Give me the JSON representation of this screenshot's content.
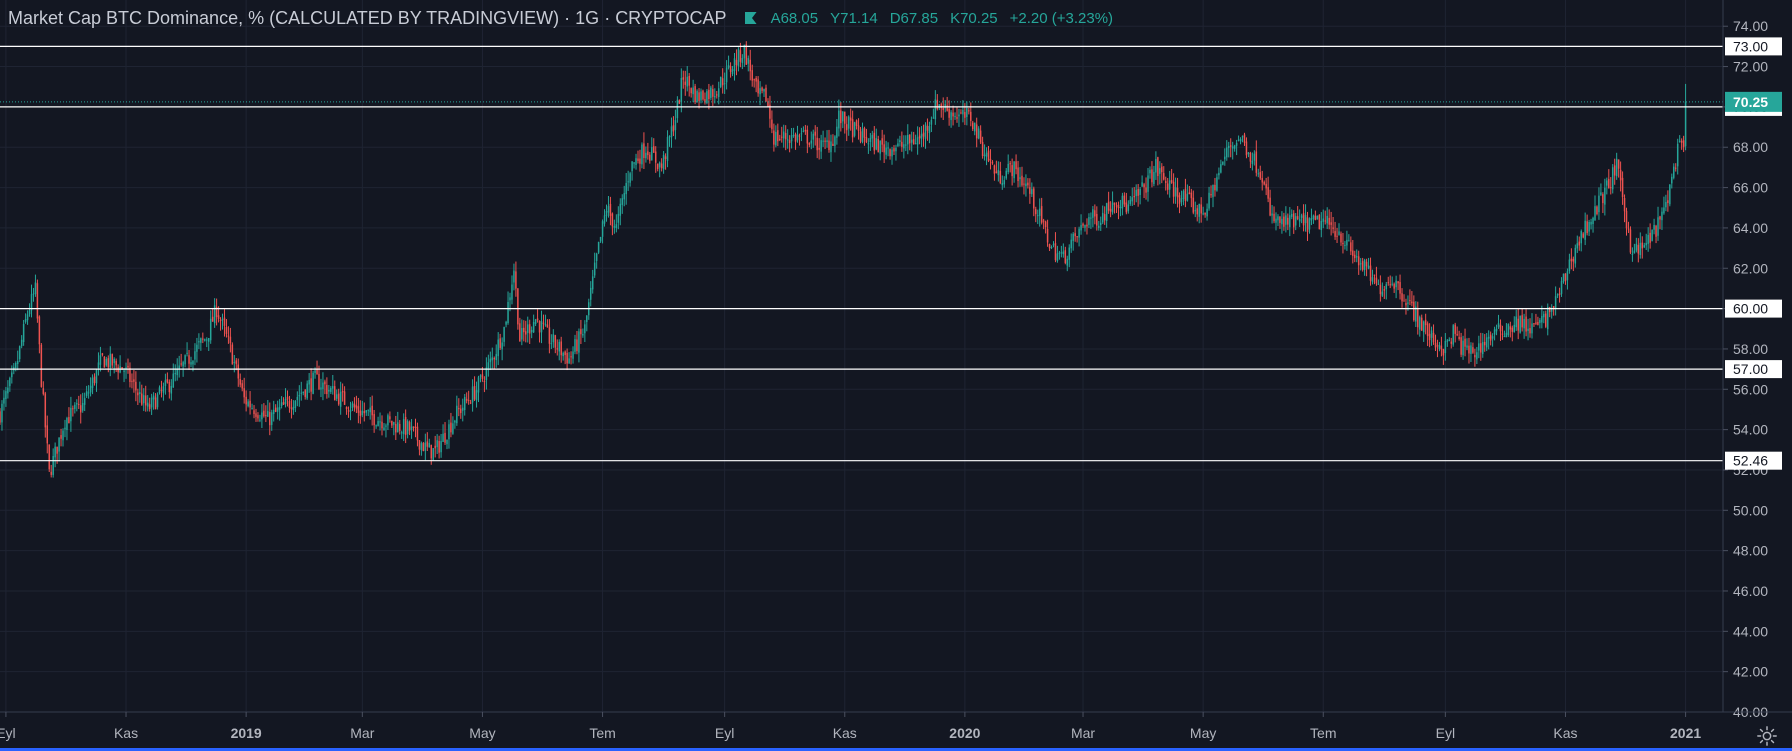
{
  "header": {
    "title": "Market Cap BTC Dominance, % (CALCULATED BY TRADINGVIEW)",
    "interval": "1G",
    "exchange": "CRYPTOCAP",
    "open_label": "A",
    "open": "68.05",
    "high_label": "Y",
    "high": "71.14",
    "low_label": "D",
    "low": "67.85",
    "close_label": "K",
    "close": "70.25",
    "change": "+2.20 (+3.23%)"
  },
  "colors": {
    "background": "#131722",
    "grid": "#1f2433",
    "up": "#26a69a",
    "down": "#ef5350",
    "axis_text": "#b2b5be",
    "level_line": "#ffffff",
    "price_tag": "#26a69a"
  },
  "chart_data": {
    "type": "candlestick",
    "x_axis": {
      "range": [
        "2018-08-29",
        "2021-01-20"
      ],
      "ticks": [
        {
          "date": "2018-09-01",
          "label": "Eyl",
          "bold": false
        },
        {
          "date": "2018-11-01",
          "label": "Kas",
          "bold": false
        },
        {
          "date": "2019-01-01",
          "label": "2019",
          "bold": true
        },
        {
          "date": "2019-03-01",
          "label": "Mar",
          "bold": false
        },
        {
          "date": "2019-05-01",
          "label": "May",
          "bold": false
        },
        {
          "date": "2019-07-01",
          "label": "Tem",
          "bold": false
        },
        {
          "date": "2019-09-01",
          "label": "Eyl",
          "bold": false
        },
        {
          "date": "2019-11-01",
          "label": "Kas",
          "bold": false
        },
        {
          "date": "2020-01-01",
          "label": "2020",
          "bold": true
        },
        {
          "date": "2020-03-01",
          "label": "Mar",
          "bold": false
        },
        {
          "date": "2020-05-01",
          "label": "May",
          "bold": false
        },
        {
          "date": "2020-07-01",
          "label": "Tem",
          "bold": false
        },
        {
          "date": "2020-09-01",
          "label": "Eyl",
          "bold": false
        },
        {
          "date": "2020-11-01",
          "label": "Kas",
          "bold": false
        },
        {
          "date": "2021-01-01",
          "label": "2021",
          "bold": true
        }
      ]
    },
    "y_axis": {
      "range": [
        40,
        75.3
      ],
      "ticks": [
        "40.00",
        "42.00",
        "44.00",
        "46.00",
        "48.00",
        "50.00",
        "52.00",
        "54.00",
        "56.00",
        "58.00",
        "60.00",
        "62.00",
        "64.00",
        "66.00",
        "68.00",
        "70.00",
        "72.00",
        "74.00"
      ],
      "grid": true
    },
    "horizontal_levels": [
      "73.00",
      "70.00",
      "60.00",
      "57.00",
      "52.46"
    ],
    "last_price": "70.25",
    "close_path": [
      [
        "2018-08-29",
        54.8
      ],
      [
        "2018-09-06",
        57.0
      ],
      [
        "2018-09-12",
        59.8
      ],
      [
        "2018-09-16",
        60.9
      ],
      [
        "2018-09-19",
        56.5
      ],
      [
        "2018-09-23",
        51.8
      ],
      [
        "2018-10-01",
        54.5
      ],
      [
        "2018-10-10",
        55.2
      ],
      [
        "2018-10-20",
        57.5
      ],
      [
        "2018-10-31",
        57.0
      ],
      [
        "2018-11-12",
        55.0
      ],
      [
        "2018-11-25",
        56.5
      ],
      [
        "2018-12-05",
        57.8
      ],
      [
        "2018-12-12",
        58.6
      ],
      [
        "2018-12-17",
        60.0
      ],
      [
        "2018-12-24",
        58.0
      ],
      [
        "2018-12-31",
        55.5
      ],
      [
        "2019-01-12",
        54.5
      ],
      [
        "2019-01-25",
        55.5
      ],
      [
        "2019-02-05",
        56.5
      ],
      [
        "2019-02-12",
        56.0
      ],
      [
        "2019-02-26",
        55.0
      ],
      [
        "2019-03-10",
        54.5
      ],
      [
        "2019-03-25",
        54.0
      ],
      [
        "2019-04-03",
        53.0
      ],
      [
        "2019-04-07",
        52.9
      ],
      [
        "2019-04-18",
        54.8
      ],
      [
        "2019-04-28",
        56.0
      ],
      [
        "2019-05-06",
        57.5
      ],
      [
        "2019-05-12",
        59.0
      ],
      [
        "2019-05-17",
        62.0
      ],
      [
        "2019-05-20",
        58.5
      ],
      [
        "2019-05-28",
        59.5
      ],
      [
        "2019-06-04",
        58.5
      ],
      [
        "2019-06-14",
        57.5
      ],
      [
        "2019-06-22",
        59.0
      ],
      [
        "2019-06-28",
        62.5
      ],
      [
        "2019-07-03",
        65.0
      ],
      [
        "2019-07-08",
        64.0
      ],
      [
        "2019-07-15",
        67.0
      ],
      [
        "2019-07-23",
        68.0
      ],
      [
        "2019-07-31",
        67.0
      ],
      [
        "2019-08-07",
        69.5
      ],
      [
        "2019-08-11",
        71.5
      ],
      [
        "2019-08-18",
        70.5
      ],
      [
        "2019-08-27",
        70.8
      ],
      [
        "2019-09-06",
        72.2
      ],
      [
        "2019-09-11",
        72.8
      ],
      [
        "2019-09-18",
        70.5
      ],
      [
        "2019-09-22",
        70.5
      ],
      [
        "2019-09-26",
        68.5
      ],
      [
        "2019-10-06",
        68.5
      ],
      [
        "2019-10-13",
        68.5
      ],
      [
        "2019-10-21",
        68.0
      ],
      [
        "2019-10-27",
        68.5
      ],
      [
        "2019-10-29",
        69.5
      ],
      [
        "2019-11-10",
        68.5
      ],
      [
        "2019-11-20",
        68.0
      ],
      [
        "2019-11-28",
        68.0
      ],
      [
        "2019-12-10",
        68.5
      ],
      [
        "2019-12-18",
        70.2
      ],
      [
        "2019-12-24",
        69.8
      ],
      [
        "2019-12-30",
        69.5
      ],
      [
        "2020-01-04",
        69.5
      ],
      [
        "2020-01-10",
        68.0
      ],
      [
        "2020-01-18",
        66.5
      ],
      [
        "2020-01-25",
        67.0
      ],
      [
        "2020-02-02",
        66.0
      ],
      [
        "2020-02-07",
        64.8
      ],
      [
        "2020-02-14",
        63.0
      ],
      [
        "2020-02-20",
        62.5
      ],
      [
        "2020-02-26",
        63.5
      ],
      [
        "2020-03-04",
        64.5
      ],
      [
        "2020-03-10",
        64.5
      ],
      [
        "2020-03-17",
        65.5
      ],
      [
        "2020-03-24",
        65.0
      ],
      [
        "2020-04-01",
        66.0
      ],
      [
        "2020-04-07",
        67.0
      ],
      [
        "2020-04-14",
        66.0
      ],
      [
        "2020-04-21",
        65.5
      ],
      [
        "2020-04-29",
        64.8
      ],
      [
        "2020-05-03",
        65.0
      ],
      [
        "2020-05-08",
        66.5
      ],
      [
        "2020-05-14",
        68.0
      ],
      [
        "2020-05-20",
        68.5
      ],
      [
        "2020-05-26",
        67.5
      ],
      [
        "2020-06-01",
        66.5
      ],
      [
        "2020-06-04",
        64.5
      ],
      [
        "2020-06-10",
        64.2
      ],
      [
        "2020-06-18",
        64.3
      ],
      [
        "2020-06-25",
        64.2
      ],
      [
        "2020-07-01",
        64.3
      ],
      [
        "2020-07-09",
        63.8
      ],
      [
        "2020-07-15",
        62.8
      ],
      [
        "2020-07-22",
        62.0
      ],
      [
        "2020-07-29",
        61.0
      ],
      [
        "2020-08-05",
        61.5
      ],
      [
        "2020-08-12",
        60.5
      ],
      [
        "2020-08-18",
        59.5
      ],
      [
        "2020-08-25",
        58.5
      ],
      [
        "2020-09-01",
        58.0
      ],
      [
        "2020-09-05",
        58.8
      ],
      [
        "2020-09-10",
        58.0
      ],
      [
        "2020-09-16",
        57.8
      ],
      [
        "2020-09-22",
        58.5
      ],
      [
        "2020-10-01",
        59.0
      ],
      [
        "2020-10-08",
        59.3
      ],
      [
        "2020-10-15",
        59.0
      ],
      [
        "2020-10-22",
        59.5
      ],
      [
        "2020-10-28",
        60.5
      ],
      [
        "2020-11-04",
        62.5
      ],
      [
        "2020-11-10",
        63.8
      ],
      [
        "2020-11-17",
        65.0
      ],
      [
        "2020-11-22",
        66.0
      ],
      [
        "2020-11-27",
        67.0
      ],
      [
        "2020-11-30",
        65.5
      ],
      [
        "2020-12-04",
        63.2
      ],
      [
        "2020-12-08",
        62.8
      ],
      [
        "2020-12-14",
        63.5
      ],
      [
        "2020-12-20",
        64.5
      ],
      [
        "2020-12-24",
        66.0
      ],
      [
        "2020-12-28",
        67.8
      ],
      [
        "2020-12-31",
        68.05
      ],
      [
        "2021-01-01",
        70.25
      ]
    ],
    "last_candle": {
      "open": 68.05,
      "high": 71.14,
      "low": 67.85,
      "close": 70.25
    }
  }
}
